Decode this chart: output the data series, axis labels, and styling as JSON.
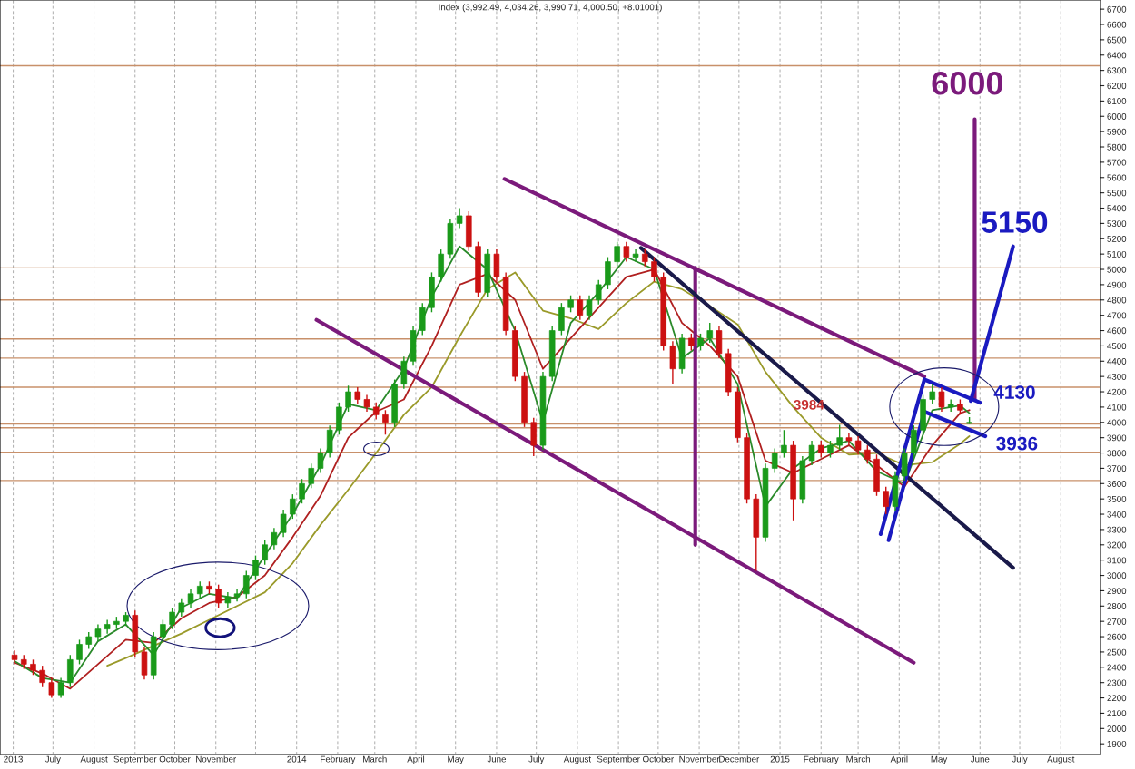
{
  "chart_data": {
    "type": "candlestick",
    "title": "Index (3,992.49, 4,034.26, 3,990.71, 4,000.50, +8.01001)",
    "x": [
      "2013-06-02",
      "2013-06-09",
      "2013-06-16",
      "2013-06-23",
      "2013-06-30",
      "2013-07-07",
      "2013-07-14",
      "2013-07-21",
      "2013-07-28",
      "2013-08-04",
      "2013-08-11",
      "2013-08-18",
      "2013-08-25",
      "2013-09-01",
      "2013-09-08",
      "2013-09-15",
      "2013-09-22",
      "2013-09-29",
      "2013-10-06",
      "2013-10-13",
      "2013-10-20",
      "2013-10-27",
      "2013-11-03",
      "2013-11-10",
      "2013-11-17",
      "2013-11-24",
      "2013-12-01",
      "2013-12-08",
      "2013-12-15",
      "2013-12-22",
      "2013-12-29",
      "2014-01-05",
      "2014-01-12",
      "2014-01-19",
      "2014-01-26",
      "2014-02-02",
      "2014-02-09",
      "2014-02-16",
      "2014-02-23",
      "2014-03-02",
      "2014-03-09",
      "2014-03-16",
      "2014-03-23",
      "2014-03-30",
      "2014-04-06",
      "2014-04-13",
      "2014-04-20",
      "2014-04-27",
      "2014-05-04",
      "2014-05-11",
      "2014-05-18",
      "2014-05-25",
      "2014-06-01",
      "2014-06-08",
      "2014-06-15",
      "2014-06-22",
      "2014-06-29",
      "2014-07-06",
      "2014-07-13",
      "2014-07-20",
      "2014-07-27",
      "2014-08-03",
      "2014-08-10",
      "2014-08-17",
      "2014-08-24",
      "2014-08-31",
      "2014-09-07",
      "2014-09-14",
      "2014-09-21",
      "2014-09-28",
      "2014-10-05",
      "2014-10-12",
      "2014-10-19",
      "2014-10-26",
      "2014-11-02",
      "2014-11-09",
      "2014-11-16",
      "2014-11-23",
      "2014-11-30",
      "2014-12-07",
      "2014-12-14",
      "2014-12-21",
      "2014-12-28",
      "2015-01-04",
      "2015-01-11",
      "2015-01-18",
      "2015-01-25",
      "2015-02-01",
      "2015-02-08",
      "2015-02-15",
      "2015-02-22",
      "2015-03-01",
      "2015-03-08",
      "2015-03-15",
      "2015-03-22",
      "2015-03-29",
      "2015-04-05",
      "2015-04-12",
      "2015-04-19",
      "2015-04-26",
      "2015-05-03",
      "2015-05-10",
      "2015-05-17",
      "2015-05-24"
    ],
    "ohlc": [
      [
        2480,
        2510,
        2420,
        2450
      ],
      [
        2450,
        2480,
        2390,
        2420
      ],
      [
        2420,
        2450,
        2350,
        2380
      ],
      [
        2380,
        2410,
        2270,
        2300
      ],
      [
        2300,
        2330,
        2200,
        2220
      ],
      [
        2220,
        2330,
        2200,
        2300
      ],
      [
        2300,
        2480,
        2270,
        2450
      ],
      [
        2450,
        2580,
        2420,
        2550
      ],
      [
        2550,
        2630,
        2520,
        2600
      ],
      [
        2600,
        2680,
        2570,
        2650
      ],
      [
        2650,
        2710,
        2620,
        2680
      ],
      [
        2680,
        2730,
        2650,
        2700
      ],
      [
        2700,
        2760,
        2670,
        2740
      ],
      [
        2740,
        2770,
        2470,
        2500
      ],
      [
        2500,
        2530,
        2320,
        2350
      ],
      [
        2350,
        2630,
        2320,
        2600
      ],
      [
        2600,
        2710,
        2570,
        2680
      ],
      [
        2680,
        2790,
        2650,
        2760
      ],
      [
        2760,
        2850,
        2730,
        2820
      ],
      [
        2820,
        2910,
        2790,
        2880
      ],
      [
        2880,
        2960,
        2850,
        2930
      ],
      [
        2930,
        2960,
        2880,
        2910
      ],
      [
        2910,
        2940,
        2790,
        2820
      ],
      [
        2820,
        2890,
        2790,
        2860
      ],
      [
        2860,
        2910,
        2830,
        2880
      ],
      [
        2880,
        3030,
        2850,
        3000
      ],
      [
        3000,
        3130,
        2970,
        3100
      ],
      [
        3100,
        3230,
        3070,
        3200
      ],
      [
        3200,
        3310,
        3170,
        3280
      ],
      [
        3280,
        3430,
        3250,
        3400
      ],
      [
        3400,
        3530,
        3370,
        3500
      ],
      [
        3500,
        3630,
        3470,
        3600
      ],
      [
        3600,
        3730,
        3570,
        3700
      ],
      [
        3700,
        3830,
        3670,
        3800
      ],
      [
        3800,
        3980,
        3770,
        3950
      ],
      [
        3950,
        4130,
        3920,
        4100
      ],
      [
        4100,
        4240,
        4070,
        4200
      ],
      [
        4200,
        4230,
        4120,
        4150
      ],
      [
        4150,
        4180,
        4070,
        4100
      ],
      [
        4100,
        4130,
        4020,
        4050
      ],
      [
        4050,
        4080,
        3920,
        4000
      ],
      [
        4000,
        4280,
        3970,
        4250
      ],
      [
        4250,
        4430,
        4220,
        4400
      ],
      [
        4400,
        4630,
        4370,
        4600
      ],
      [
        4600,
        4780,
        4570,
        4750
      ],
      [
        4750,
        4980,
        4720,
        4950
      ],
      [
        4950,
        5130,
        4920,
        5100
      ],
      [
        5100,
        5330,
        5070,
        5300
      ],
      [
        5300,
        5400,
        5270,
        5350
      ],
      [
        5350,
        5380,
        5120,
        5150
      ],
      [
        5150,
        5180,
        4820,
        4850
      ],
      [
        4850,
        5130,
        4820,
        5100
      ],
      [
        5100,
        5130,
        4920,
        4950
      ],
      [
        4950,
        4980,
        4570,
        4600
      ],
      [
        4600,
        4630,
        4270,
        4300
      ],
      [
        4300,
        4330,
        3970,
        4000
      ],
      [
        4000,
        4030,
        3780,
        3850
      ],
      [
        3850,
        4330,
        3820,
        4300
      ],
      [
        4300,
        4630,
        4270,
        4600
      ],
      [
        4600,
        4780,
        4570,
        4750
      ],
      [
        4750,
        4830,
        4720,
        4800
      ],
      [
        4800,
        4830,
        4670,
        4700
      ],
      [
        4700,
        4830,
        4670,
        4800
      ],
      [
        4800,
        4930,
        4770,
        4900
      ],
      [
        4900,
        5080,
        4870,
        5050
      ],
      [
        5050,
        5180,
        5020,
        5150
      ],
      [
        5150,
        5180,
        5050,
        5080
      ],
      [
        5080,
        5130,
        5050,
        5100
      ],
      [
        5100,
        5130,
        5020,
        5050
      ],
      [
        5050,
        5080,
        4920,
        4950
      ],
      [
        4950,
        4980,
        4470,
        4500
      ],
      [
        4500,
        4530,
        4250,
        4350
      ],
      [
        4350,
        4580,
        4320,
        4550
      ],
      [
        4550,
        4580,
        4470,
        4500
      ],
      [
        4500,
        4580,
        4470,
        4550
      ],
      [
        4550,
        4650,
        4520,
        4600
      ],
      [
        4600,
        4630,
        4420,
        4450
      ],
      [
        4450,
        4480,
        4170,
        4200
      ],
      [
        4200,
        4230,
        3870,
        3900
      ],
      [
        3900,
        3930,
        3470,
        3500
      ],
      [
        3500,
        3530,
        3030,
        3250
      ],
      [
        3250,
        3730,
        3220,
        3700
      ],
      [
        3700,
        3830,
        3670,
        3800
      ],
      [
        3800,
        3950,
        3770,
        3850
      ],
      [
        3850,
        3880,
        3360,
        3500
      ],
      [
        3500,
        3780,
        3470,
        3750
      ],
      [
        3750,
        3880,
        3720,
        3850
      ],
      [
        3850,
        3880,
        3770,
        3800
      ],
      [
        3800,
        3880,
        3770,
        3850
      ],
      [
        3850,
        3984,
        3820,
        3900
      ],
      [
        3900,
        3930,
        3850,
        3880
      ],
      [
        3880,
        3910,
        3790,
        3820
      ],
      [
        3820,
        3850,
        3730,
        3760
      ],
      [
        3760,
        3790,
        3520,
        3550
      ],
      [
        3550,
        3580,
        3400,
        3450
      ],
      [
        3450,
        3680,
        3420,
        3650
      ],
      [
        3650,
        3830,
        3620,
        3800
      ],
      [
        3800,
        3980,
        3770,
        3950
      ],
      [
        3950,
        4180,
        3920,
        4150
      ],
      [
        4150,
        4250,
        4120,
        4200
      ],
      [
        4200,
        4230,
        4070,
        4100
      ],
      [
        4100,
        4150,
        4070,
        4120
      ],
      [
        4120,
        4150,
        4050,
        4080
      ],
      [
        3992.49,
        4034.26,
        3990.71,
        4000.5
      ]
    ],
    "colors": [
      "#cc1111",
      "#cc1111",
      "#cc1111",
      "#cc1111",
      "#cc1111",
      "#1a9a1a",
      "#1a9a1a",
      "#1a9a1a",
      "#1a9a1a",
      "#1a9a1a",
      "#1a9a1a",
      "#1a9a1a",
      "#1a9a1a",
      "#cc1111",
      "#cc1111",
      "#1a9a1a",
      "#1a9a1a",
      "#1a9a1a",
      "#1a9a1a",
      "#1a9a1a",
      "#1a9a1a",
      "#cc1111",
      "#cc1111",
      "#1a9a1a",
      "#1a9a1a",
      "#1a9a1a",
      "#1a9a1a",
      "#1a9a1a",
      "#1a9a1a",
      "#1a9a1a",
      "#1a9a1a",
      "#1a9a1a",
      "#1a9a1a",
      "#1a9a1a",
      "#1a9a1a",
      "#1a9a1a",
      "#1a9a1a",
      "#cc1111",
      "#cc1111",
      "#cc1111",
      "#cc1111",
      "#1a9a1a",
      "#1a9a1a",
      "#1a9a1a",
      "#1a9a1a",
      "#1a9a1a",
      "#1a9a1a",
      "#1a9a1a",
      "#1a9a1a",
      "#cc1111",
      "#cc1111",
      "#1a9a1a",
      "#cc1111",
      "#cc1111",
      "#cc1111",
      "#cc1111",
      "#cc1111",
      "#1a9a1a",
      "#1a9a1a",
      "#1a9a1a",
      "#1a9a1a",
      "#cc1111",
      "#1a9a1a",
      "#1a9a1a",
      "#1a9a1a",
      "#1a9a1a",
      "#cc1111",
      "#1a9a1a",
      "#cc1111",
      "#cc1111",
      "#cc1111",
      "#cc1111",
      "#1a9a1a",
      "#cc1111",
      "#1a9a1a",
      "#1a9a1a",
      "#cc1111",
      "#cc1111",
      "#cc1111",
      "#cc1111",
      "#cc1111",
      "#1a9a1a",
      "#1a9a1a",
      "#1a9a1a",
      "#cc1111",
      "#1a9a1a",
      "#1a9a1a",
      "#cc1111",
      "#1a9a1a",
      "#1a9a1a",
      "#cc1111",
      "#cc1111",
      "#cc1111",
      "#cc1111",
      "#cc1111",
      "#1a9a1a",
      "#1a9a1a",
      "#1a9a1a",
      "#1a9a1a",
      "#1a9a1a",
      "#cc1111",
      "#1a9a1a",
      "#cc1111",
      "#1a9a1a"
    ],
    "series": [
      {
        "type": "line",
        "color": "#9a9a2a",
        "x": [
          "2013-08-11",
          "2013-08-25",
          "2013-09-15",
          "2013-10-06",
          "2013-10-27",
          "2013-11-17",
          "2013-12-08",
          "2013-12-29",
          "2014-01-19",
          "2014-02-09",
          "2014-03-02",
          "2014-03-23",
          "2014-04-13",
          "2014-05-04",
          "2014-05-25",
          "2014-06-15",
          "2014-07-06",
          "2014-07-27",
          "2014-08-17",
          "2014-09-07",
          "2014-09-28",
          "2014-10-19",
          "2014-11-09",
          "2014-11-30",
          "2014-12-21",
          "2015-01-11",
          "2015-02-01",
          "2015-02-22",
          "2015-03-15",
          "2015-04-05",
          "2015-04-26",
          "2015-05-17",
          "2015-05-24"
        ],
        "values": [
          2410,
          2460,
          2540,
          2620,
          2710,
          2800,
          2890,
          3080,
          3330,
          3560,
          3800,
          4050,
          4230,
          4560,
          4870,
          4980,
          4730,
          4680,
          4610,
          4780,
          4920,
          4870,
          4760,
          4640,
          4330,
          4100,
          3900,
          3790,
          3800,
          3720,
          3740,
          3860,
          3910
        ]
      },
      {
        "type": "line",
        "color": "#b02020",
        "x": [
          "2013-06-02",
          "2013-06-23",
          "2013-07-14",
          "2013-08-04",
          "2013-08-25",
          "2013-09-15",
          "2013-10-06",
          "2013-10-27",
          "2013-11-17",
          "2013-12-08",
          "2013-12-29",
          "2014-01-19",
          "2014-02-09",
          "2014-03-02",
          "2014-03-23",
          "2014-04-13",
          "2014-05-04",
          "2014-05-25",
          "2014-06-15",
          "2014-07-06",
          "2014-07-27",
          "2014-08-17",
          "2014-09-07",
          "2014-09-28",
          "2014-10-19",
          "2014-11-09",
          "2014-11-30",
          "2014-12-21",
          "2015-01-11",
          "2015-02-01",
          "2015-02-22",
          "2015-03-15",
          "2015-04-05",
          "2015-04-26",
          "2015-05-17",
          "2015-05-24"
        ],
        "values": [
          2430,
          2360,
          2260,
          2420,
          2580,
          2560,
          2720,
          2820,
          2860,
          3000,
          3250,
          3520,
          3900,
          4070,
          4150,
          4500,
          4900,
          4970,
          4800,
          4350,
          4550,
          4750,
          4950,
          5000,
          4650,
          4500,
          4300,
          3750,
          3670,
          3760,
          3850,
          3720,
          3580,
          3850,
          4060,
          4080
        ]
      },
      {
        "type": "line",
        "color": "#2a8a2a",
        "x": [
          "2013-06-02",
          "2013-06-23",
          "2013-07-14",
          "2013-08-04",
          "2013-08-25",
          "2013-09-15",
          "2013-10-06",
          "2013-10-27",
          "2013-11-17",
          "2013-12-08",
          "2013-12-29",
          "2014-01-19",
          "2014-02-09",
          "2014-03-02",
          "2014-03-23",
          "2014-04-13",
          "2014-05-04",
          "2014-05-25",
          "2014-06-15",
          "2014-07-06",
          "2014-07-27",
          "2014-08-17",
          "2014-09-07",
          "2014-09-28",
          "2014-10-19",
          "2014-11-09",
          "2014-11-30",
          "2014-12-21",
          "2015-01-11",
          "2015-02-01",
          "2015-02-22",
          "2015-03-15",
          "2015-04-05",
          "2015-04-26",
          "2015-05-17",
          "2015-05-24"
        ],
        "values": [
          2440,
          2330,
          2300,
          2570,
          2680,
          2480,
          2790,
          2880,
          2850,
          3130,
          3400,
          3720,
          4120,
          4080,
          4350,
          4820,
          5150,
          5000,
          4600,
          4000,
          4650,
          4850,
          5080,
          5000,
          4420,
          4550,
          4250,
          3450,
          3700,
          3830,
          3880,
          3680,
          3600,
          4080,
          4110,
          4060
        ]
      },
      {
        "type": "line",
        "color": "#7b1a7b",
        "x": [
          "2014-06-07",
          "2015-04-20"
        ],
        "values": [
          5590,
          4300
        ]
      },
      {
        "type": "line",
        "color": "#7b1a7b",
        "x": [
          "2014-01-16",
          "2015-04-12"
        ],
        "values": [
          4670,
          2430
        ]
      },
      {
        "type": "line",
        "color": "#7b1a7b",
        "x": [
          "2014-10-29",
          "2014-10-29"
        ],
        "values": [
          5010,
          3200
        ]
      },
      {
        "type": "line",
        "color": "#7b1a7b",
        "x": [
          "2015-05-28",
          "2015-05-28"
        ],
        "values": [
          5980,
          4150
        ]
      },
      {
        "type": "line",
        "color": "#1a1a4a",
        "x": [
          "2014-09-18",
          "2015-06-26"
        ],
        "values": [
          5140,
          3050
        ]
      },
      {
        "type": "line",
        "color": "#1a1ac0",
        "x": [
          "2015-03-18",
          "2015-04-20"
        ],
        "values": [
          3270,
          4280
        ]
      },
      {
        "type": "line",
        "color": "#1a1ac0",
        "x": [
          "2015-03-24",
          "2015-04-20"
        ],
        "values": [
          3230,
          4070
        ]
      },
      {
        "type": "line",
        "color": "#1a1ac0",
        "x": [
          "2015-04-20",
          "2015-06-01"
        ],
        "values": [
          4280,
          4130
        ]
      },
      {
        "type": "line",
        "color": "#1a1ac0",
        "x": [
          "2015-04-20",
          "2015-06-05"
        ],
        "values": [
          4070,
          3910
        ]
      },
      {
        "type": "line",
        "color": "#1a1ac0",
        "x": [
          "2015-05-25",
          "2015-06-26"
        ],
        "values": [
          4140,
          5150
        ]
      }
    ],
    "ref_lines": [
      {
        "axis": "y",
        "value": 6330,
        "color": "#c8906a"
      },
      {
        "axis": "y",
        "value": 5010,
        "color": "#c8906a"
      },
      {
        "axis": "y",
        "value": 4800,
        "color": "#c8906a"
      },
      {
        "axis": "y",
        "value": 4545,
        "color": "#c8906a"
      },
      {
        "axis": "y",
        "value": 4420,
        "color": "#c8906a"
      },
      {
        "axis": "y",
        "value": 4230,
        "color": "#c8906a"
      },
      {
        "axis": "y",
        "value": 3990,
        "color": "#c8906a"
      },
      {
        "axis": "y",
        "value": 3965,
        "color": "#c8906a"
      },
      {
        "axis": "y",
        "value": 3805,
        "color": "#c8906a"
      },
      {
        "axis": "y",
        "value": 3620,
        "color": "#c8906a"
      }
    ],
    "annotations": [
      "6000",
      "5150",
      "4130",
      "3936",
      "3984"
    ],
    "xlim": [
      "2013-05-22",
      "2015-08-31"
    ],
    "ylim": [
      1830,
      6760
    ],
    "xticks": [
      {
        "value": "2013-06-01",
        "label": "2013"
      },
      {
        "value": "2013-07-01",
        "label": "July"
      },
      {
        "value": "2013-08-01",
        "label": "August"
      },
      {
        "value": "2013-09-01",
        "label": "September"
      },
      {
        "value": "2013-10-01",
        "label": "October"
      },
      {
        "value": "2013-11-01",
        "label": "November"
      },
      {
        "value": "2013-12-01",
        "label": null
      },
      {
        "value": "2014-01-01",
        "label": "2014"
      },
      {
        "value": "2014-02-01",
        "label": "February"
      },
      {
        "value": "2014-03-01",
        "label": "March"
      },
      {
        "value": "2014-04-01",
        "label": "April"
      },
      {
        "value": "2014-05-01",
        "label": "May"
      },
      {
        "value": "2014-06-01",
        "label": "June"
      },
      {
        "value": "2014-07-01",
        "label": "July"
      },
      {
        "value": "2014-08-01",
        "label": "August"
      },
      {
        "value": "2014-09-01",
        "label": "September"
      },
      {
        "value": "2014-10-01",
        "label": "October"
      },
      {
        "value": "2014-11-01",
        "label": "November"
      },
      {
        "value": "2014-12-01",
        "label": "December"
      },
      {
        "value": "2015-01-01",
        "label": "2015"
      },
      {
        "value": "2015-02-01",
        "label": "February"
      },
      {
        "value": "2015-03-01",
        "label": "March"
      },
      {
        "value": "2015-04-01",
        "label": "April"
      },
      {
        "value": "2015-05-01",
        "label": "May"
      },
      {
        "value": "2015-06-01",
        "label": "June"
      },
      {
        "value": "2015-07-01",
        "label": "July"
      },
      {
        "value": "2015-08-01",
        "label": "August"
      }
    ],
    "yticks": [
      1900,
      2000,
      2100,
      2200,
      2300,
      2400,
      2500,
      2600,
      2700,
      2800,
      2900,
      3000,
      3100,
      3200,
      3300,
      3400,
      3500,
      3600,
      3700,
      3800,
      3900,
      4000,
      4100,
      4200,
      4300,
      4400,
      4500,
      4600,
      4700,
      4800,
      4900,
      5000,
      5100,
      5200,
      5300,
      5400,
      5500,
      5600,
      5700,
      5800,
      5900,
      6000,
      6100,
      6200,
      6300,
      6400,
      6500,
      6600,
      6700
    ],
    "grid": "x"
  }
}
